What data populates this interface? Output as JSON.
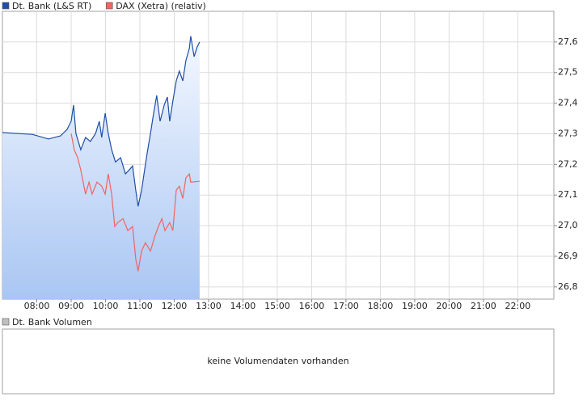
{
  "chart_data": [
    {
      "type": "line",
      "xlim": [
        7,
        23.05
      ],
      "xticks": [
        {
          "value": 8,
          "label": "08:00"
        },
        {
          "value": 9,
          "label": "09:00"
        },
        {
          "value": 10,
          "label": "10:00"
        },
        {
          "value": 11,
          "label": "11:00"
        },
        {
          "value": 12,
          "label": "12:00"
        },
        {
          "value": 13,
          "label": "13:00"
        },
        {
          "value": 14,
          "label": "14:00"
        },
        {
          "value": 15,
          "label": "15:00"
        },
        {
          "value": 16,
          "label": "16:00"
        },
        {
          "value": 17,
          "label": "17:00"
        },
        {
          "value": 18,
          "label": "18:00"
        },
        {
          "value": 19,
          "label": "19:00"
        },
        {
          "value": 20,
          "label": "20:00"
        },
        {
          "value": 21,
          "label": "21:00"
        },
        {
          "value": 22,
          "label": "22:00"
        }
      ],
      "ylim": [
        26.76,
        27.7
      ],
      "yticks": [
        {
          "value": 26.8,
          "label": "26,8"
        },
        {
          "value": 26.9,
          "label": "26,9"
        },
        {
          "value": 27.0,
          "label": "27,0"
        },
        {
          "value": 27.1,
          "label": "27,1"
        },
        {
          "value": 27.2,
          "label": "27,2"
        },
        {
          "value": 27.3,
          "label": "27,3"
        },
        {
          "value": 27.4,
          "label": "27,4"
        },
        {
          "value": 27.5,
          "label": "27,5"
        },
        {
          "value": 27.6,
          "label": "27,6"
        }
      ],
      "grid": true,
      "series": [
        {
          "name": "Dt. Bank (L&S RT)",
          "color": "#1f4ea8",
          "area": true,
          "x": [
            7.0,
            7.87,
            8.34,
            8.69,
            8.88,
            9.0,
            9.07,
            9.14,
            9.28,
            9.42,
            9.56,
            9.71,
            9.82,
            9.89,
            9.99,
            10.08,
            10.18,
            10.29,
            10.44,
            10.58,
            10.69,
            10.79,
            10.88,
            10.95,
            11.05,
            11.12,
            11.21,
            11.31,
            11.4,
            11.49,
            11.59,
            11.71,
            11.8,
            11.87,
            11.96,
            12.06,
            12.15,
            12.25,
            12.34,
            12.44,
            12.48,
            12.58,
            12.67,
            12.74
          ],
          "values": [
            27.304,
            27.298,
            27.283,
            27.293,
            27.314,
            27.341,
            27.394,
            27.301,
            27.248,
            27.288,
            27.275,
            27.301,
            27.341,
            27.288,
            27.367,
            27.301,
            27.248,
            27.208,
            27.222,
            27.169,
            27.182,
            27.195,
            27.116,
            27.063,
            27.116,
            27.169,
            27.235,
            27.301,
            27.367,
            27.425,
            27.341,
            27.394,
            27.42,
            27.341,
            27.407,
            27.473,
            27.505,
            27.473,
            27.539,
            27.579,
            27.619,
            27.552,
            27.584,
            27.6
          ]
        },
        {
          "name": "DAX (Xetra) (relativ)",
          "color": "#f06464",
          "x": [
            9.0,
            9.09,
            9.19,
            9.28,
            9.42,
            9.52,
            9.61,
            9.75,
            9.89,
            9.99,
            10.08,
            10.18,
            10.27,
            10.36,
            10.51,
            10.65,
            10.79,
            10.88,
            10.95,
            11.05,
            11.16,
            11.31,
            11.45,
            11.54,
            11.64,
            11.73,
            11.87,
            11.96,
            12.06,
            12.15,
            12.25,
            12.34,
            12.44,
            12.48,
            12.74
          ],
          "values": [
            27.301,
            27.248,
            27.222,
            27.182,
            27.103,
            27.142,
            27.103,
            27.142,
            27.129,
            27.103,
            27.169,
            27.103,
            26.997,
            27.01,
            27.023,
            26.984,
            26.997,
            26.891,
            26.851,
            26.917,
            26.944,
            26.917,
            26.97,
            26.997,
            27.023,
            26.984,
            27.01,
            26.984,
            27.116,
            27.129,
            27.089,
            27.156,
            27.169,
            27.142,
            27.145
          ]
        }
      ]
    },
    {
      "type": "empty",
      "series": [
        {
          "name": "Dt. Bank Volumen",
          "color": "#c0c0c0"
        }
      ],
      "message": "keine Volumendaten vorhanden"
    }
  ]
}
